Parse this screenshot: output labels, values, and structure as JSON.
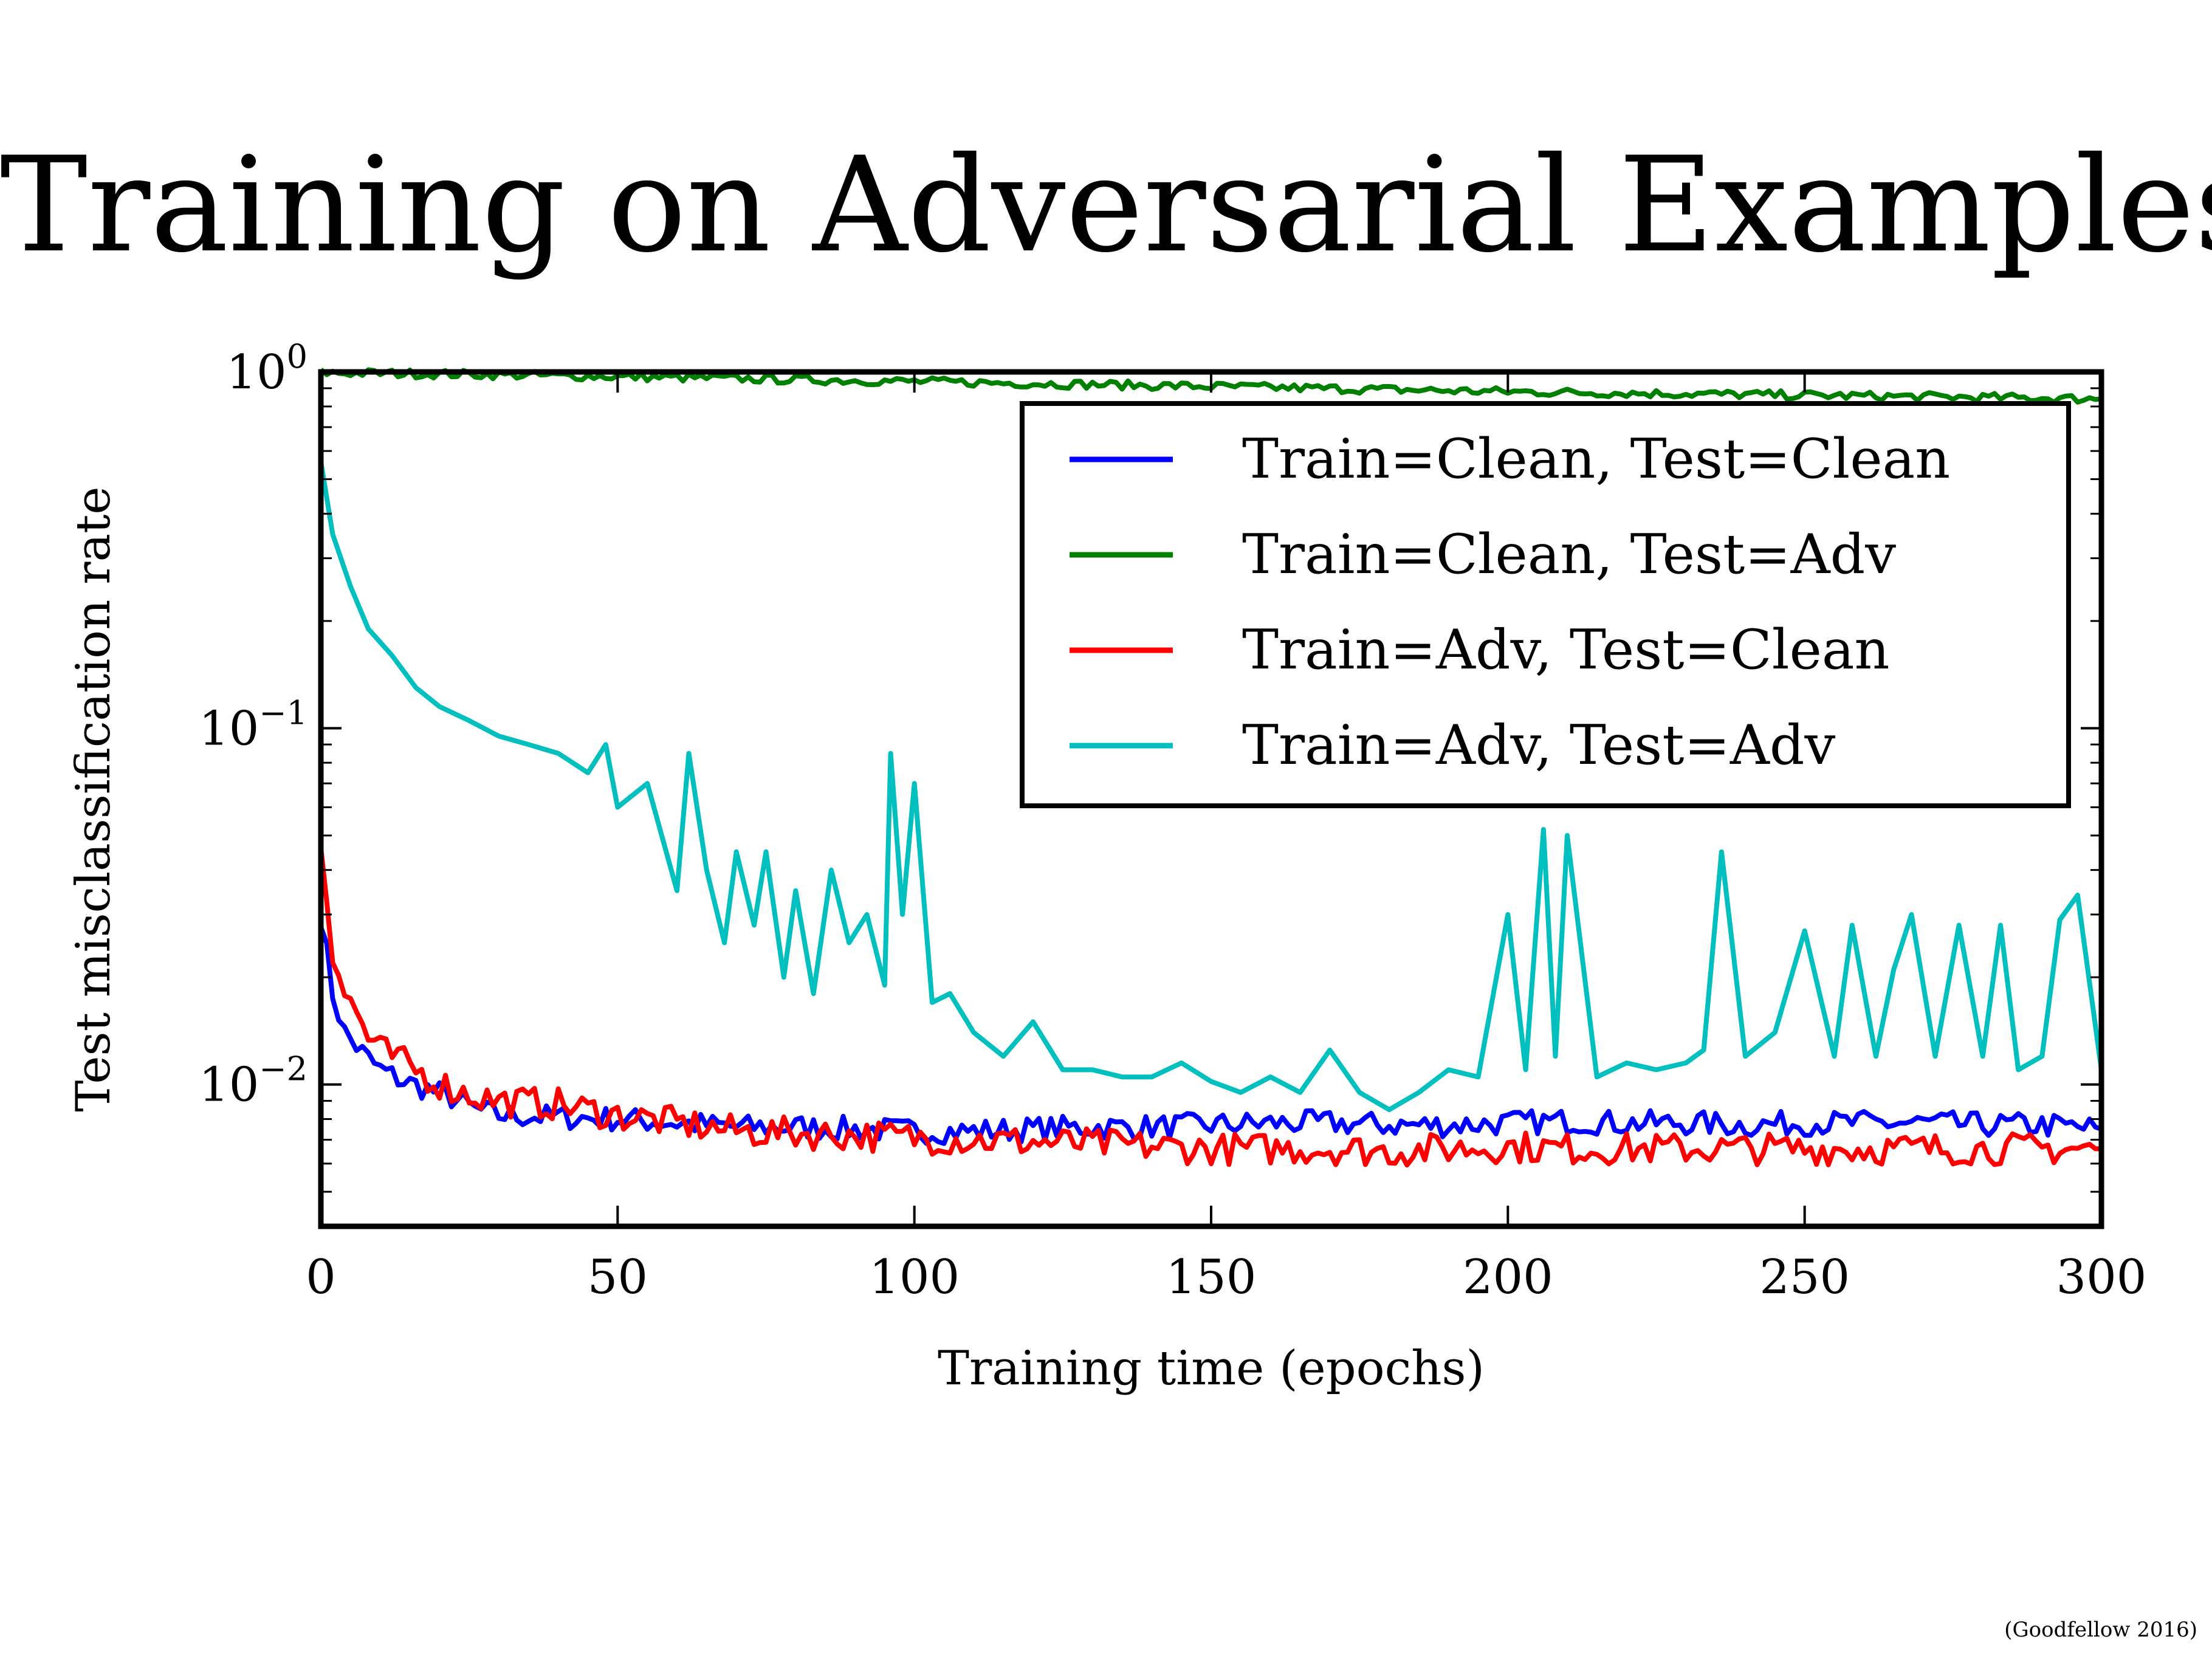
{
  "slide": {
    "title": "Training on Adversarial Examples",
    "credit": "(Goodfellow 2016)"
  },
  "chart_data": {
    "type": "line",
    "xlabel": "Training time (epochs)",
    "ylabel": "Test misclassification rate",
    "xlim": [
      0,
      300
    ],
    "ylim": [
      0.004,
      1.0
    ],
    "yscale": "log",
    "xticks": [
      0,
      50,
      100,
      150,
      200,
      250,
      300
    ],
    "yticks": [
      {
        "value": 1,
        "base": "10",
        "exp": "0"
      },
      {
        "value": 0.1,
        "base": "10",
        "exp": "−1"
      },
      {
        "value": 0.01,
        "base": "10",
        "exp": "−2"
      }
    ],
    "grid": false,
    "legend_position": "top-right",
    "series": [
      {
        "name": "Train=Clean, Test=Clean",
        "color": "#0000ff",
        "x": [
          0,
          2,
          4,
          6,
          8,
          10,
          14,
          18,
          22,
          26,
          30,
          40,
          50,
          60,
          70,
          80,
          90,
          100,
          110,
          120,
          130,
          140,
          150,
          160,
          170,
          180,
          190,
          200,
          210,
          220,
          230,
          240,
          250,
          260,
          270,
          280,
          290,
          300
        ],
        "y": [
          0.03,
          0.018,
          0.014,
          0.0128,
          0.0118,
          0.011,
          0.0102,
          0.0097,
          0.0092,
          0.0085,
          0.0082,
          0.0081,
          0.008,
          0.0078,
          0.0076,
          0.0076,
          0.0075,
          0.0074,
          0.0074,
          0.0075,
          0.0076,
          0.0076,
          0.0077,
          0.0078,
          0.0078,
          0.0077,
          0.0077,
          0.0078,
          0.0079,
          0.0078,
          0.0078,
          0.0077,
          0.0078,
          0.0078,
          0.0078,
          0.0077,
          0.0077,
          0.0075
        ]
      },
      {
        "name": "Train=Clean, Test=Adv",
        "color": "#008000",
        "x": [
          0,
          25,
          50,
          75,
          100,
          125,
          150,
          175,
          200,
          225,
          250,
          275,
          300
        ],
        "y": [
          0.995,
          0.985,
          0.97,
          0.955,
          0.94,
          0.925,
          0.91,
          0.895,
          0.88,
          0.87,
          0.86,
          0.85,
          0.84
        ]
      },
      {
        "name": "Train=Adv, Test=Clean",
        "color": "#ff0000",
        "x": [
          0,
          2,
          4,
          6,
          8,
          10,
          14,
          18,
          22,
          26,
          30,
          40,
          50,
          60,
          70,
          80,
          90,
          100,
          110,
          120,
          130,
          140,
          150,
          160,
          170,
          180,
          190,
          200,
          210,
          220,
          230,
          240,
          250,
          260,
          270,
          280,
          290,
          300
        ],
        "y": [
          0.048,
          0.024,
          0.018,
          0.016,
          0.0135,
          0.0125,
          0.0115,
          0.0105,
          0.0097,
          0.0093,
          0.009,
          0.0088,
          0.0082,
          0.0078,
          0.0074,
          0.0073,
          0.0072,
          0.0071,
          0.007,
          0.0069,
          0.0068,
          0.0067,
          0.0066,
          0.0066,
          0.0066,
          0.0065,
          0.0066,
          0.0067,
          0.0066,
          0.0066,
          0.0066,
          0.0066,
          0.0066,
          0.0066,
          0.0066,
          0.0066,
          0.0066,
          0.0066
        ]
      },
      {
        "name": "Train=Adv, Test=Adv",
        "color": "#00bfbf",
        "x": [
          0,
          2,
          5,
          8,
          12,
          16,
          20,
          25,
          30,
          35,
          40,
          45,
          48,
          50,
          55,
          60,
          62,
          65,
          68,
          70,
          73,
          75,
          78,
          80,
          83,
          86,
          89,
          92,
          95,
          96,
          98,
          100,
          103,
          106,
          110,
          115,
          120,
          125,
          130,
          135,
          140,
          145,
          150,
          155,
          160,
          165,
          170,
          175,
          180,
          185,
          190,
          195,
          200,
          203,
          206,
          208,
          210,
          215,
          220,
          225,
          230,
          233,
          236,
          240,
          245,
          250,
          255,
          258,
          262,
          265,
          268,
          272,
          276,
          280,
          283,
          286,
          290,
          293,
          296,
          300
        ],
        "y": [
          0.56,
          0.35,
          0.25,
          0.19,
          0.16,
          0.13,
          0.115,
          0.105,
          0.095,
          0.09,
          0.085,
          0.075,
          0.09,
          0.06,
          0.07,
          0.035,
          0.085,
          0.04,
          0.025,
          0.045,
          0.028,
          0.045,
          0.02,
          0.035,
          0.018,
          0.04,
          0.025,
          0.03,
          0.019,
          0.085,
          0.03,
          0.07,
          0.017,
          0.018,
          0.014,
          0.012,
          0.015,
          0.011,
          0.011,
          0.0105,
          0.0105,
          0.0115,
          0.0102,
          0.0095,
          0.0105,
          0.0095,
          0.0125,
          0.0095,
          0.0085,
          0.0095,
          0.011,
          0.0105,
          0.03,
          0.011,
          0.052,
          0.012,
          0.05,
          0.0105,
          0.0115,
          0.011,
          0.0115,
          0.0125,
          0.045,
          0.012,
          0.014,
          0.027,
          0.012,
          0.028,
          0.012,
          0.021,
          0.03,
          0.012,
          0.028,
          0.012,
          0.028,
          0.011,
          0.012,
          0.029,
          0.034,
          0.011
        ]
      }
    ]
  }
}
